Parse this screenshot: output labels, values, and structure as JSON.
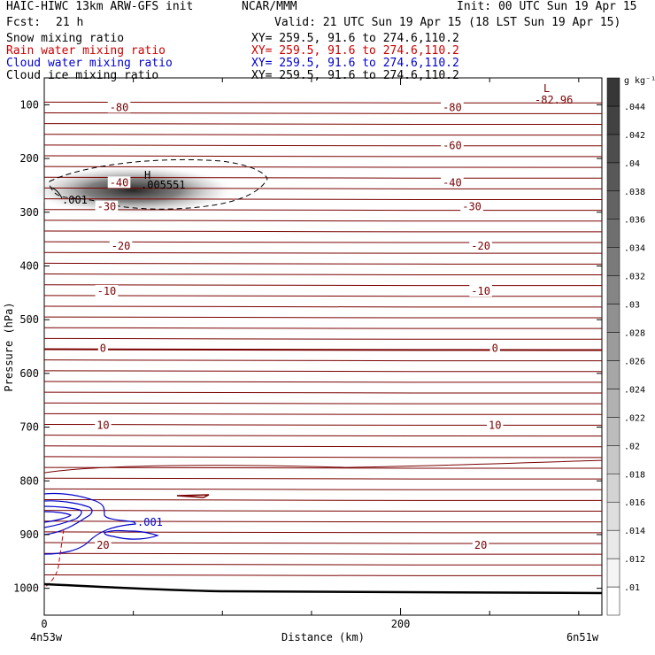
{
  "header": {
    "model": "HAIC-HIWC 13km ARW-GFS init",
    "org": "NCAR/MMM",
    "init": "Init: 00 UTC Sun 19 Apr 15",
    "fcst_label": "Fcst:",
    "fcst_value": "21 h",
    "valid": "Valid: 21 UTC Sun 19 Apr 15 (18 LST Sun 19 Apr 15)"
  },
  "fields": [
    {
      "name": "Snow mixing ratio",
      "xy": "XY= 259.5, 91.6 to 274.6,110.2",
      "color": "#000000"
    },
    {
      "name": "Rain water mixing ratio",
      "xy": "XY= 259.5, 91.6 to 274.6,110.2",
      "color": "#cc0000"
    },
    {
      "name": "Cloud water mixing ratio",
      "xy": "XY= 259.5, 91.6 to 274.6,110.2",
      "color": "#0000cc"
    },
    {
      "name": "Cloud ice mixing ratio",
      "xy": "XY= 259.5, 91.6 to 274.6,110.2",
      "color": "#000000"
    }
  ],
  "colors": {
    "temperature": "#7a0000",
    "cloud_water": "#0000cc",
    "rain": "#cc0000",
    "ground": "#000000"
  },
  "chart_data": {
    "type": "contour-cross-section",
    "xlabel": "Distance (km)",
    "ylabel": "Pressure (hPa)",
    "xlim": [
      0,
      313
    ],
    "ylim": [
      1050,
      50
    ],
    "x_ticks": [
      0,
      200
    ],
    "y_ticks": [
      100,
      200,
      300,
      400,
      500,
      600,
      700,
      800,
      900,
      1000
    ],
    "x_end_labels": [
      "4n53w",
      "6n51w"
    ],
    "temperature_labels": [
      {
        "text": "-80",
        "x": 42,
        "p": 105
      },
      {
        "text": "-80",
        "x": 229,
        "p": 105
      },
      {
        "text": "-60",
        "x": 229,
        "p": 176
      },
      {
        "text": "-40",
        "x": 42,
        "p": 245
      },
      {
        "text": "-40",
        "x": 229,
        "p": 245
      },
      {
        "text": "-30",
        "x": 35,
        "p": 290
      },
      {
        "text": "-30",
        "x": 240,
        "p": 290
      },
      {
        "text": "-20",
        "x": 43,
        "p": 363
      },
      {
        "text": "-20",
        "x": 245,
        "p": 363
      },
      {
        "text": "-10",
        "x": 35,
        "p": 447
      },
      {
        "text": "-10",
        "x": 245,
        "p": 447
      },
      {
        "text": "0",
        "x": 33,
        "p": 553
      },
      {
        "text": "0",
        "x": 253,
        "p": 553
      },
      {
        "text": "10",
        "x": 33,
        "p": 697
      },
      {
        "text": "10",
        "x": 253,
        "p": 697
      },
      {
        "text": "20",
        "x": 33,
        "p": 920
      },
      {
        "text": "20",
        "x": 245,
        "p": 920
      }
    ],
    "extrema": {
      "min_marker": "L",
      "min_value": "-82.96",
      "min_x": 280,
      "min_p": 85,
      "max_marker": "H",
      "max_value": ".005551",
      "max_x": 56,
      "max_p": 230
    },
    "snow_contour_label": ".001",
    "cloud_water_label": ".001",
    "colorbar": {
      "unit": "g kg⁻¹",
      "ticks": [
        ".01",
        ".012",
        ".014",
        ".016",
        ".018",
        ".02",
        ".022",
        ".024",
        ".026",
        ".028",
        ".03",
        ".032",
        ".034",
        ".036",
        ".038",
        ".04",
        ".042",
        ".044"
      ],
      "levels": 19
    }
  }
}
